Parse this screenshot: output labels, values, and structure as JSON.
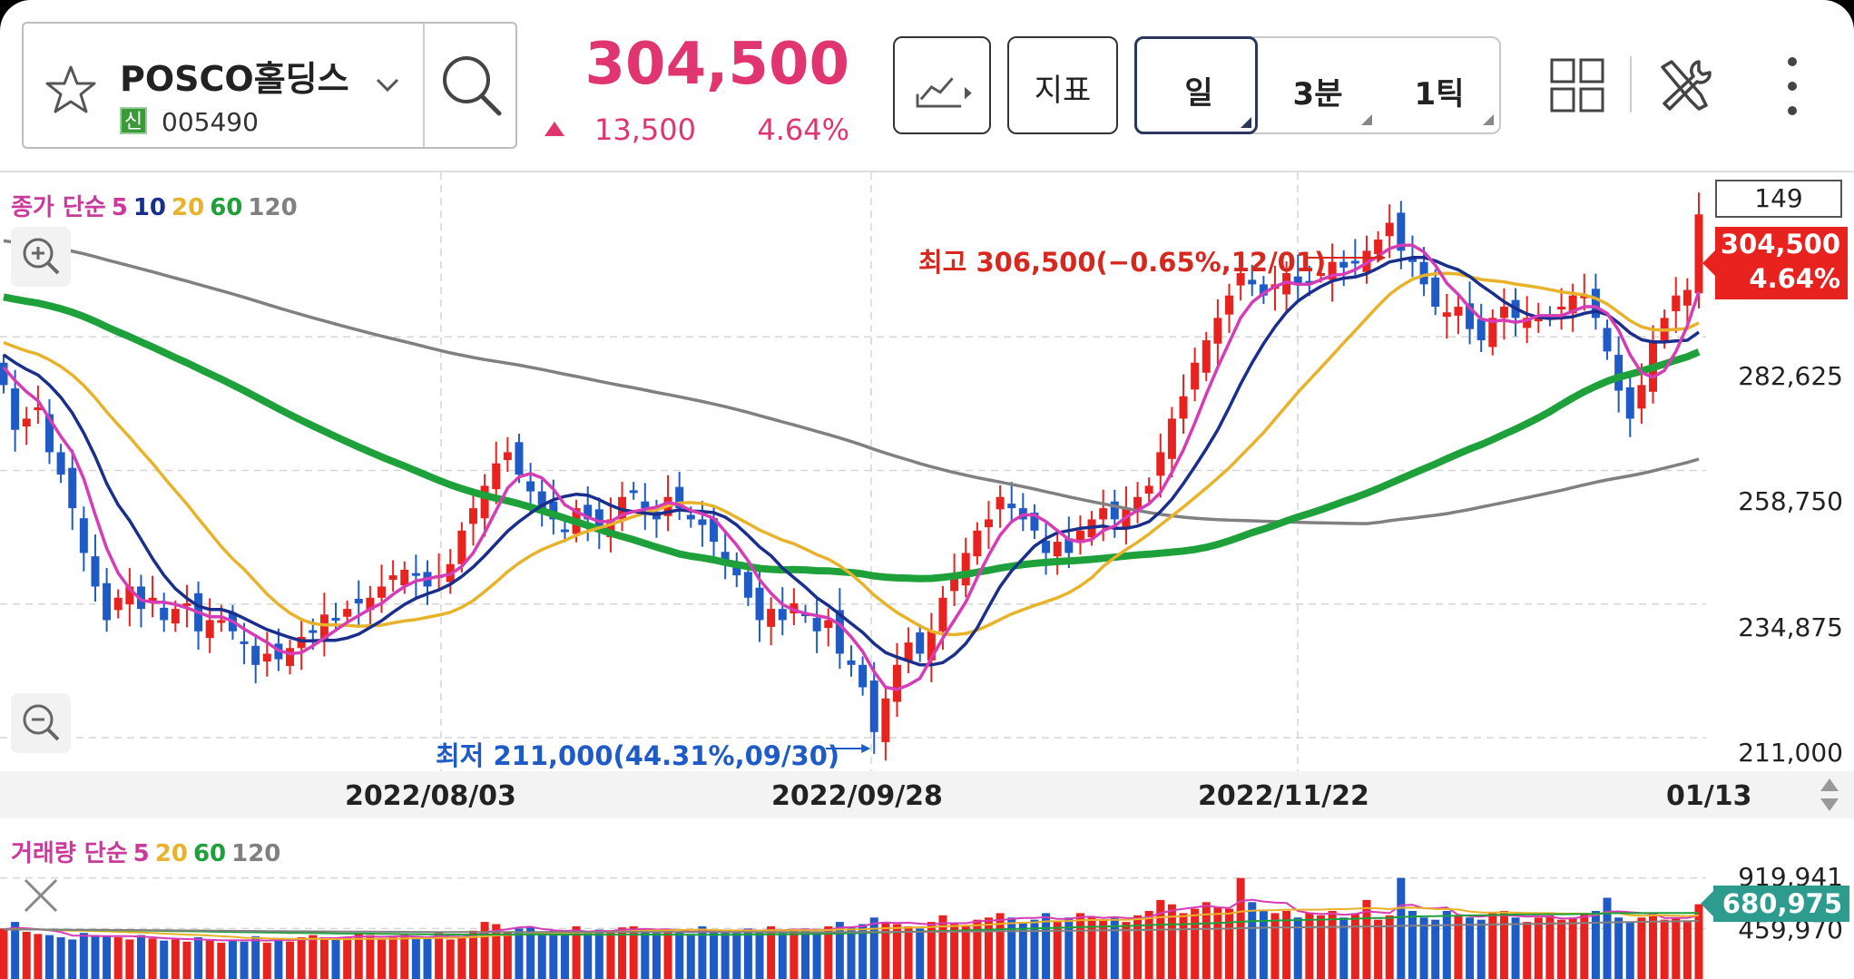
{
  "stock": {
    "name": "POSCO홀딩스",
    "badge": "신",
    "code": "005490"
  },
  "quote": {
    "price": "304,500",
    "change": "13,500",
    "change_pct": "4.64%",
    "direction": "up"
  },
  "toolbar": {
    "indicator_label": "지표",
    "chart_type_icon": "line-chart-icon"
  },
  "period_tabs": [
    {
      "label": "일",
      "selected": true
    },
    {
      "label": "3분",
      "selected": false
    },
    {
      "label": "1틱",
      "selected": false
    }
  ],
  "price_legend": {
    "prefix": "종가 단순",
    "ma": [
      "5",
      "10",
      "20",
      "60",
      "120"
    ]
  },
  "volume_legend": {
    "prefix": "거래량 단순",
    "ma": [
      "5",
      "20",
      "60",
      "120"
    ]
  },
  "visible_count": "149",
  "current_tag": {
    "price": "304,500",
    "pct": "4.64%"
  },
  "volume_tag": "680,975",
  "annotations": {
    "high": "최고 306,500(−0.65%,12/01)",
    "low": "최저 211,000(44.31%,09/30)"
  },
  "colors": {
    "up": "#e8231f",
    "down": "#1f5bc6",
    "ma5": "#d63cb5",
    "ma10": "#1a2f8c",
    "ma20": "#e8b32a",
    "ma60": "#1ea03a",
    "ma120": "#808080"
  },
  "chart_data": {
    "type": "candlestick",
    "y_ticks": [
      "282,625",
      "258,750",
      "234,875",
      "211,000"
    ],
    "ylim": [
      205000,
      312000
    ],
    "x_ticks": [
      "2022/08/03",
      "2022/09/28",
      "2022/11/22",
      "01/13"
    ],
    "volume_ticks": [
      "919,941",
      "459,970"
    ],
    "close": [
      274000,
      266000,
      268000,
      270000,
      262000,
      258000,
      252000,
      244000,
      238000,
      232000,
      236000,
      238000,
      234000,
      236000,
      232000,
      234000,
      235000,
      230000,
      232000,
      232000,
      230000,
      228000,
      224000,
      226000,
      225000,
      227000,
      229000,
      230000,
      233000,
      232000,
      234000,
      235000,
      236000,
      238000,
      240000,
      241000,
      240000,
      238000,
      240000,
      242000,
      248000,
      252000,
      256000,
      260000,
      262000,
      258000,
      255000,
      252000,
      250000,
      248000,
      252000,
      250000,
      248000,
      250000,
      254000,
      255000,
      252000,
      250000,
      254000,
      252000,
      250000,
      249000,
      246000,
      242000,
      240000,
      236000,
      232000,
      234000,
      232000,
      235000,
      233000,
      230000,
      232000,
      226000,
      224000,
      220000,
      212000,
      218000,
      224000,
      228000,
      226000,
      230000,
      236000,
      240000,
      244000,
      248000,
      250000,
      254000,
      252000,
      250000,
      248000,
      244000,
      246000,
      244000,
      248000,
      250000,
      252000,
      250000,
      252000,
      254000,
      256000,
      262000,
      268000,
      272000,
      278000,
      282000,
      286000,
      290000,
      294000,
      292000,
      290000,
      292000,
      294000,
      292000,
      292000,
      294000,
      296000,
      295000,
      296000,
      298000,
      300000,
      303000,
      298000,
      296000,
      292000,
      288000,
      287000,
      288000,
      284000,
      282000,
      286000,
      288000,
      286000,
      286000,
      286000,
      286000,
      288000,
      290000,
      290000,
      286000,
      280000,
      273000,
      268000,
      274000,
      282000,
      286000,
      290000,
      291000,
      304500
    ],
    "volume": [
      460000,
      520000,
      430000,
      410000,
      400000,
      380000,
      360000,
      420000,
      400000,
      390000,
      380000,
      360000,
      400000,
      370000,
      350000,
      360000,
      340000,
      380000,
      350000,
      330000,
      360000,
      340000,
      390000,
      330000,
      360000,
      340000,
      380000,
      400000,
      380000,
      360000,
      380000,
      420000,
      400000,
      360000,
      380000,
      400000,
      390000,
      370000,
      420000,
      360000,
      380000,
      440000,
      520000,
      500000,
      430000,
      460000,
      470000,
      420000,
      440000,
      400000,
      480000,
      420000,
      450000,
      430000,
      470000,
      480000,
      450000,
      420000,
      440000,
      430000,
      410000,
      480000,
      450000,
      430000,
      420000,
      460000,
      440000,
      480000,
      420000,
      450000,
      460000,
      430000,
      480000,
      520000,
      470000,
      500000,
      560000,
      520000,
      500000,
      480000,
      460000,
      520000,
      580000,
      500000,
      480000,
      540000,
      560000,
      600000,
      560000,
      520000,
      540000,
      600000,
      520000,
      560000,
      600000,
      560000,
      540000,
      560000,
      520000,
      580000,
      620000,
      720000,
      680000,
      600000,
      640000,
      700000,
      650000,
      640000,
      920000,
      700000,
      620000,
      600000,
      620000,
      560000,
      600000,
      580000,
      620000,
      560000,
      600000,
      720000,
      540000,
      580000,
      920000,
      620000,
      560000,
      540000,
      620000,
      580000,
      560000,
      540000,
      600000,
      620000,
      560000,
      520000,
      560000,
      580000,
      540000,
      560000,
      600000,
      620000,
      740000,
      560000,
      520000,
      560000,
      600000,
      540000,
      560000,
      520000,
      680975
    ]
  }
}
